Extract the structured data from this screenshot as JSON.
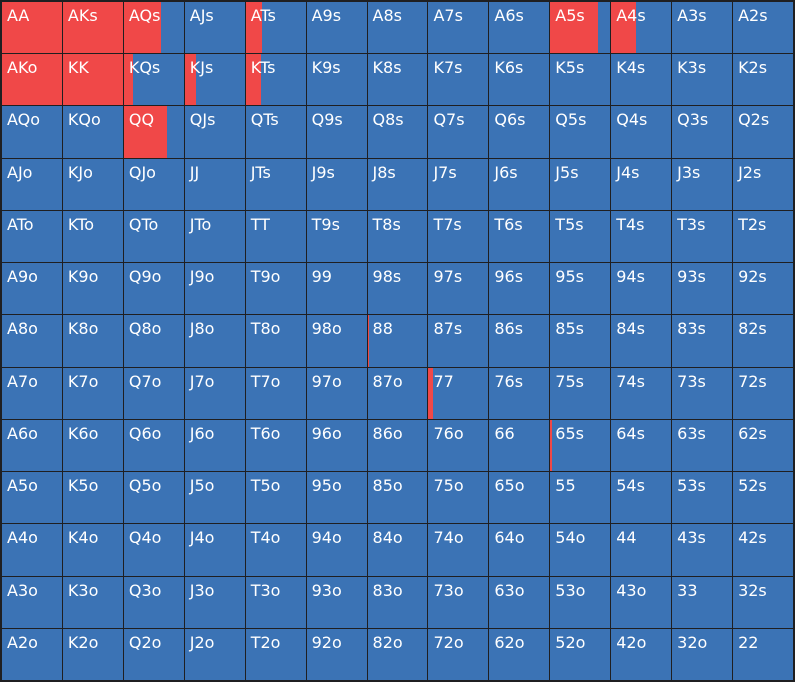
{
  "colors": {
    "fold": "#3b73b5",
    "raise": "#f04848",
    "grid_line": "#1f1f21",
    "text": "#ffffff"
  },
  "grid": {
    "rows": [
      {
        "cells": [
          {
            "label": "AA",
            "raise": 1.0
          },
          {
            "label": "AKs",
            "raise": 1.0
          },
          {
            "label": "AQs",
            "raise": 0.62
          },
          {
            "label": "AJs",
            "raise": 0
          },
          {
            "label": "ATs",
            "raise": 0.28
          },
          {
            "label": "A9s",
            "raise": 0
          },
          {
            "label": "A8s",
            "raise": 0
          },
          {
            "label": "A7s",
            "raise": 0
          },
          {
            "label": "A6s",
            "raise": 0
          },
          {
            "label": "A5s",
            "raise": 0.8
          },
          {
            "label": "A4s",
            "raise": 0.42
          },
          {
            "label": "A3s",
            "raise": 0
          },
          {
            "label": "A2s",
            "raise": 0
          }
        ]
      },
      {
        "cells": [
          {
            "label": "AKo",
            "raise": 1.0
          },
          {
            "label": "KK",
            "raise": 1.0
          },
          {
            "label": "KQs",
            "raise": 0.15
          },
          {
            "label": "KJs",
            "raise": 0.18
          },
          {
            "label": "KTs",
            "raise": 0.25
          },
          {
            "label": "K9s",
            "raise": 0
          },
          {
            "label": "K8s",
            "raise": 0
          },
          {
            "label": "K7s",
            "raise": 0
          },
          {
            "label": "K6s",
            "raise": 0
          },
          {
            "label": "K5s",
            "raise": 0
          },
          {
            "label": "K4s",
            "raise": 0
          },
          {
            "label": "K3s",
            "raise": 0
          },
          {
            "label": "K2s",
            "raise": 0
          }
        ]
      },
      {
        "cells": [
          {
            "label": "AQo",
            "raise": 0
          },
          {
            "label": "KQo",
            "raise": 0
          },
          {
            "label": "QQ",
            "raise": 0.72
          },
          {
            "label": "QJs",
            "raise": 0
          },
          {
            "label": "QTs",
            "raise": 0
          },
          {
            "label": "Q9s",
            "raise": 0
          },
          {
            "label": "Q8s",
            "raise": 0
          },
          {
            "label": "Q7s",
            "raise": 0
          },
          {
            "label": "Q6s",
            "raise": 0
          },
          {
            "label": "Q5s",
            "raise": 0
          },
          {
            "label": "Q4s",
            "raise": 0
          },
          {
            "label": "Q3s",
            "raise": 0
          },
          {
            "label": "Q2s",
            "raise": 0
          }
        ]
      },
      {
        "cells": [
          {
            "label": "AJo",
            "raise": 0
          },
          {
            "label": "KJo",
            "raise": 0
          },
          {
            "label": "QJo",
            "raise": 0
          },
          {
            "label": "JJ",
            "raise": 0
          },
          {
            "label": "JTs",
            "raise": 0
          },
          {
            "label": "J9s",
            "raise": 0
          },
          {
            "label": "J8s",
            "raise": 0
          },
          {
            "label": "J7s",
            "raise": 0
          },
          {
            "label": "J6s",
            "raise": 0
          },
          {
            "label": "J5s",
            "raise": 0
          },
          {
            "label": "J4s",
            "raise": 0
          },
          {
            "label": "J3s",
            "raise": 0
          },
          {
            "label": "J2s",
            "raise": 0
          }
        ]
      },
      {
        "cells": [
          {
            "label": "ATo",
            "raise": 0
          },
          {
            "label": "KTo",
            "raise": 0
          },
          {
            "label": "QTo",
            "raise": 0
          },
          {
            "label": "JTo",
            "raise": 0
          },
          {
            "label": "TT",
            "raise": 0
          },
          {
            "label": "T9s",
            "raise": 0
          },
          {
            "label": "T8s",
            "raise": 0
          },
          {
            "label": "T7s",
            "raise": 0
          },
          {
            "label": "T6s",
            "raise": 0
          },
          {
            "label": "T5s",
            "raise": 0
          },
          {
            "label": "T4s",
            "raise": 0
          },
          {
            "label": "T3s",
            "raise": 0
          },
          {
            "label": "T2s",
            "raise": 0
          }
        ]
      },
      {
        "cells": [
          {
            "label": "A9o",
            "raise": 0
          },
          {
            "label": "K9o",
            "raise": 0
          },
          {
            "label": "Q9o",
            "raise": 0
          },
          {
            "label": "J9o",
            "raise": 0
          },
          {
            "label": "T9o",
            "raise": 0
          },
          {
            "label": "99",
            "raise": 0
          },
          {
            "label": "98s",
            "raise": 0
          },
          {
            "label": "97s",
            "raise": 0
          },
          {
            "label": "96s",
            "raise": 0
          },
          {
            "label": "95s",
            "raise": 0
          },
          {
            "label": "94s",
            "raise": 0
          },
          {
            "label": "93s",
            "raise": 0
          },
          {
            "label": "92s",
            "raise": 0
          }
        ]
      },
      {
        "cells": [
          {
            "label": "A8o",
            "raise": 0
          },
          {
            "label": "K8o",
            "raise": 0
          },
          {
            "label": "Q8o",
            "raise": 0
          },
          {
            "label": "J8o",
            "raise": 0
          },
          {
            "label": "T8o",
            "raise": 0
          },
          {
            "label": "98o",
            "raise": 0
          },
          {
            "label": "88",
            "raise": 0.03
          },
          {
            "label": "87s",
            "raise": 0
          },
          {
            "label": "86s",
            "raise": 0
          },
          {
            "label": "85s",
            "raise": 0
          },
          {
            "label": "84s",
            "raise": 0
          },
          {
            "label": "83s",
            "raise": 0
          },
          {
            "label": "82s",
            "raise": 0
          }
        ]
      },
      {
        "cells": [
          {
            "label": "A7o",
            "raise": 0
          },
          {
            "label": "K7o",
            "raise": 0
          },
          {
            "label": "Q7o",
            "raise": 0
          },
          {
            "label": "J7o",
            "raise": 0
          },
          {
            "label": "T7o",
            "raise": 0
          },
          {
            "label": "97o",
            "raise": 0
          },
          {
            "label": "87o",
            "raise": 0
          },
          {
            "label": "77",
            "raise": 0.07
          },
          {
            "label": "76s",
            "raise": 0
          },
          {
            "label": "75s",
            "raise": 0
          },
          {
            "label": "74s",
            "raise": 0
          },
          {
            "label": "73s",
            "raise": 0
          },
          {
            "label": "72s",
            "raise": 0
          }
        ]
      },
      {
        "cells": [
          {
            "label": "A6o",
            "raise": 0
          },
          {
            "label": "K6o",
            "raise": 0
          },
          {
            "label": "Q6o",
            "raise": 0
          },
          {
            "label": "J6o",
            "raise": 0
          },
          {
            "label": "T6o",
            "raise": 0
          },
          {
            "label": "96o",
            "raise": 0
          },
          {
            "label": "86o",
            "raise": 0
          },
          {
            "label": "76o",
            "raise": 0
          },
          {
            "label": "66",
            "raise": 0
          },
          {
            "label": "65s",
            "raise": 0.03
          },
          {
            "label": "64s",
            "raise": 0
          },
          {
            "label": "63s",
            "raise": 0
          },
          {
            "label": "62s",
            "raise": 0
          }
        ]
      },
      {
        "cells": [
          {
            "label": "A5o",
            "raise": 0
          },
          {
            "label": "K5o",
            "raise": 0
          },
          {
            "label": "Q5o",
            "raise": 0
          },
          {
            "label": "J5o",
            "raise": 0
          },
          {
            "label": "T5o",
            "raise": 0
          },
          {
            "label": "95o",
            "raise": 0
          },
          {
            "label": "85o",
            "raise": 0
          },
          {
            "label": "75o",
            "raise": 0
          },
          {
            "label": "65o",
            "raise": 0
          },
          {
            "label": "55",
            "raise": 0
          },
          {
            "label": "54s",
            "raise": 0
          },
          {
            "label": "53s",
            "raise": 0
          },
          {
            "label": "52s",
            "raise": 0
          }
        ]
      },
      {
        "cells": [
          {
            "label": "A4o",
            "raise": 0
          },
          {
            "label": "K4o",
            "raise": 0
          },
          {
            "label": "Q4o",
            "raise": 0
          },
          {
            "label": "J4o",
            "raise": 0
          },
          {
            "label": "T4o",
            "raise": 0
          },
          {
            "label": "94o",
            "raise": 0
          },
          {
            "label": "84o",
            "raise": 0
          },
          {
            "label": "74o",
            "raise": 0
          },
          {
            "label": "64o",
            "raise": 0
          },
          {
            "label": "54o",
            "raise": 0
          },
          {
            "label": "44",
            "raise": 0
          },
          {
            "label": "43s",
            "raise": 0
          },
          {
            "label": "42s",
            "raise": 0
          }
        ]
      },
      {
        "cells": [
          {
            "label": "A3o",
            "raise": 0
          },
          {
            "label": "K3o",
            "raise": 0
          },
          {
            "label": "Q3o",
            "raise": 0
          },
          {
            "label": "J3o",
            "raise": 0
          },
          {
            "label": "T3o",
            "raise": 0
          },
          {
            "label": "93o",
            "raise": 0
          },
          {
            "label": "83o",
            "raise": 0
          },
          {
            "label": "73o",
            "raise": 0
          },
          {
            "label": "63o",
            "raise": 0
          },
          {
            "label": "53o",
            "raise": 0
          },
          {
            "label": "43o",
            "raise": 0
          },
          {
            "label": "33",
            "raise": 0
          },
          {
            "label": "32s",
            "raise": 0
          }
        ]
      },
      {
        "cells": [
          {
            "label": "A2o",
            "raise": 0
          },
          {
            "label": "K2o",
            "raise": 0
          },
          {
            "label": "Q2o",
            "raise": 0
          },
          {
            "label": "J2o",
            "raise": 0
          },
          {
            "label": "T2o",
            "raise": 0
          },
          {
            "label": "92o",
            "raise": 0
          },
          {
            "label": "82o",
            "raise": 0
          },
          {
            "label": "72o",
            "raise": 0
          },
          {
            "label": "62o",
            "raise": 0
          },
          {
            "label": "52o",
            "raise": 0
          },
          {
            "label": "42o",
            "raise": 0
          },
          {
            "label": "32o",
            "raise": 0
          },
          {
            "label": "22",
            "raise": 0
          }
        ]
      }
    ]
  }
}
